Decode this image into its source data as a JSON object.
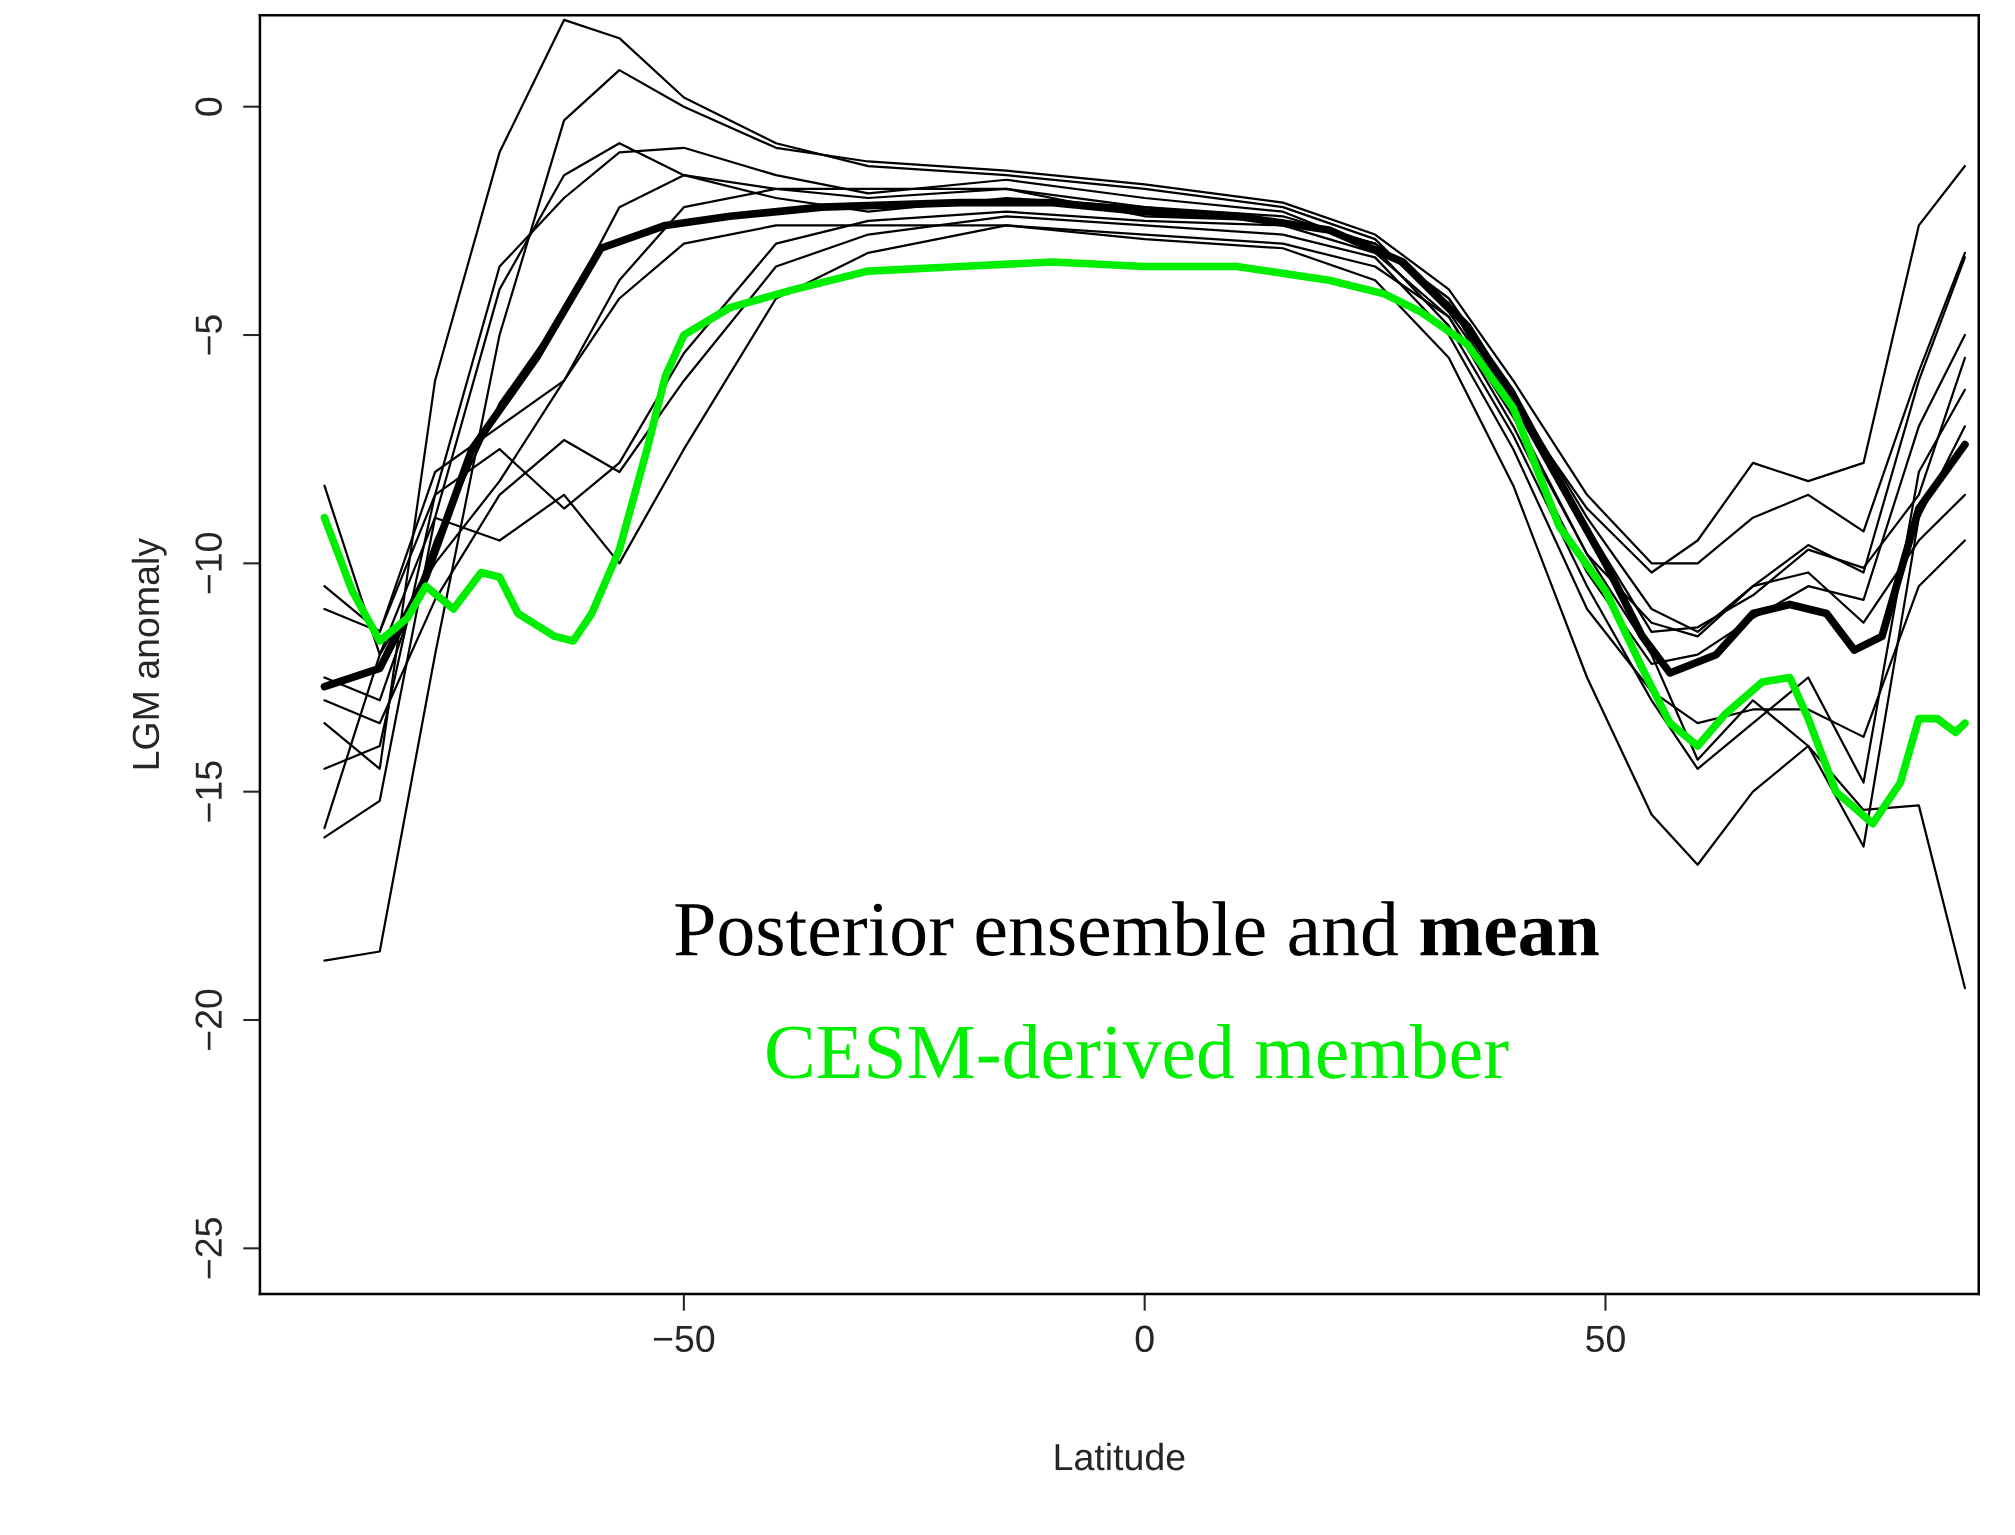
{
  "chart_data": {
    "type": "line",
    "xlabel": "Latitude",
    "ylabel": "LGM anomaly",
    "xlim": [
      -96,
      90.5
    ],
    "ylim": [
      -26,
      2
    ],
    "xticks": [
      {
        "value": -50,
        "label": "−50"
      },
      0,
      50
    ],
    "yticks": [
      0,
      {
        "value": -5,
        "label": "−5"
      },
      {
        "value": -10,
        "label": "−10"
      },
      {
        "value": -15,
        "label": "−15"
      },
      {
        "value": -20,
        "label": "−20"
      },
      {
        "value": -25,
        "label": "−25"
      }
    ],
    "grid": false,
    "legend": "bottom left",
    "marker": "none",
    "line_style": "solid",
    "x": [
      -89,
      -83,
      -77,
      -70,
      -63,
      -57,
      -50,
      -40,
      -30,
      -15,
      0,
      15,
      25,
      33,
      40,
      48,
      55,
      60,
      66,
      72,
      78,
      84,
      89
    ],
    "series": [
      {
        "color": "#000000",
        "values": [
          -13.5,
          -14.5,
          -6,
          -1,
          1.9,
          1.5,
          0.2,
          -0.8,
          -1.3,
          -1.5,
          -1.8,
          -2.2,
          -2.9,
          -4.5,
          -6.5,
          -8.8,
          -10.2,
          -9.5,
          -7.8,
          -8.2,
          -7.8,
          -2.6,
          -1.3
        ]
      },
      {
        "color": "#000000",
        "values": [
          -18.7,
          -18.5,
          -12,
          -5,
          -0.3,
          0.8,
          0,
          -0.9,
          -1.2,
          -1.4,
          -1.7,
          -2.1,
          -2.8,
          -4.0,
          -6.0,
          -8.5,
          -10.0,
          -10.0,
          -9.0,
          -8.5,
          -9.3,
          -5.8,
          -3.2
        ]
      },
      {
        "color": "#000000",
        "values": [
          -16.0,
          -15.2,
          -9,
          -4,
          -1.5,
          -0.8,
          -1.5,
          -2.0,
          -2.3,
          -2.0,
          -2.2,
          -2.5,
          -3.0,
          -4.2,
          -6.3,
          -9.0,
          -11.0,
          -11.5,
          -10.5,
          -9.6,
          -10.2,
          -6.0,
          -3.3
        ]
      },
      {
        "color": "#000000",
        "values": [
          -14.5,
          -14,
          -8.5,
          -7.5,
          -8.8,
          -7.8,
          -5.4,
          -3.0,
          -2.5,
          -2.3,
          -2.5,
          -2.6,
          -3.2,
          -4.6,
          -7.0,
          -10.2,
          -12.2,
          -12.0,
          -11.2,
          -10.5,
          -10.8,
          -7.0,
          -5.0
        ]
      },
      {
        "color": "#000000",
        "values": [
          -13.0,
          -13.5,
          -10.8,
          -8.5,
          -7.3,
          -8.0,
          -6.0,
          -3.5,
          -2.8,
          -2.4,
          -2.6,
          -2.8,
          -3.3,
          -5.0,
          -7.5,
          -11,
          -12.8,
          -13.5,
          -13.2,
          -13.2,
          -13.8,
          -10.5,
          -9.5
        ]
      },
      {
        "color": "#000000",
        "values": [
          -8.3,
          -12,
          -9,
          -9.5,
          -8.5,
          -10,
          -7.5,
          -4.2,
          -3.2,
          -2.6,
          -2.9,
          -3.1,
          -3.8,
          -5.5,
          -8.3,
          -12.5,
          -15.5,
          -16.6,
          -15.0,
          -14.0,
          -15.4,
          -15.3,
          -19.3
        ]
      },
      {
        "color": "#000000",
        "values": [
          -12.5,
          -13,
          -9.5,
          -6.5,
          -4.5,
          -2.2,
          -1.5,
          -1.8,
          -2.0,
          -1.8,
          -2.2,
          -2.4,
          -3.0,
          -4.3,
          -6.7,
          -9.8,
          -12.0,
          -14.3,
          -13.0,
          -14.0,
          -16.2,
          -9.0,
          -7.0
        ]
      },
      {
        "color": "#000000",
        "values": [
          -10.5,
          -11.5,
          -8.5,
          -3.5,
          -2.0,
          -1.0,
          -0.9,
          -1.5,
          -1.9,
          -1.6,
          -2.0,
          -2.3,
          -3.1,
          -4.8,
          -7.2,
          -10.5,
          -13.0,
          -14.5,
          -13.5,
          -12.5,
          -14.8,
          -8.0,
          -6.2
        ]
      },
      {
        "color": "#000000",
        "values": [
          -15.8,
          -12,
          -10,
          -8.2,
          -6,
          -4.2,
          -3.0,
          -2.6,
          -2.6,
          -2.6,
          -2.8,
          -3.0,
          -3.5,
          -4.6,
          -6.8,
          -9.8,
          -11.3,
          -11.6,
          -10.5,
          -10.2,
          -11.3,
          -9.5,
          -8.5
        ]
      },
      {
        "color": "#000000",
        "values": [
          -11,
          -11.5,
          -8,
          -7,
          -6,
          -3.8,
          -2.2,
          -1.8,
          -1.8,
          -1.8,
          -2.4,
          -2.5,
          -3.0,
          -4.2,
          -6.2,
          -9.2,
          -11.5,
          -11.4,
          -10.7,
          -9.7,
          -10.1,
          -8.5,
          -5.5
        ]
      },
      {
        "name": "Posterior ensemble and mean",
        "color": "#000000",
        "x": [
          -89,
          -83,
          -78,
          -73,
          -66,
          -59,
          -52,
          -45,
          -35,
          -20,
          -10,
          0,
          10,
          20,
          28,
          35,
          40,
          45,
          50,
          54,
          57,
          62,
          66,
          70,
          74,
          77,
          80,
          84,
          89
        ],
        "values": [
          -12.7,
          -12.3,
          -10.3,
          -7.5,
          -5.5,
          -3.1,
          -2.6,
          -2.4,
          -2.2,
          -2.1,
          -2.1,
          -2.3,
          -2.4,
          -2.7,
          -3.4,
          -4.8,
          -6.4,
          -8.2,
          -10.0,
          -11.6,
          -12.4,
          -12.0,
          -11.1,
          -10.9,
          -11.1,
          -11.9,
          -11.6,
          -8.8,
          -7.4
        ]
      },
      {
        "name": "CESM-derived member",
        "color": "#00ee00",
        "x": [
          -89,
          -86,
          -83,
          -80,
          -78,
          -75,
          -72,
          -70,
          -68,
          -64,
          -62,
          -60,
          -57,
          -54,
          -52,
          -50,
          -45,
          -38,
          -30,
          -20,
          -10,
          0,
          10,
          20,
          26,
          30,
          35,
          40,
          45,
          50,
          54,
          57,
          60,
          63,
          67,
          70,
          72,
          75,
          79,
          82,
          84,
          86,
          88,
          89
        ],
        "values": [
          -9.0,
          -10.6,
          -11.7,
          -11.2,
          -10.5,
          -11.0,
          -10.2,
          -10.3,
          -11.1,
          -11.6,
          -11.7,
          -11.1,
          -9.7,
          -7.5,
          -5.9,
          -5.0,
          -4.4,
          -4.0,
          -3.6,
          -3.5,
          -3.4,
          -3.5,
          -3.5,
          -3.8,
          -4.1,
          -4.5,
          -5.2,
          -6.6,
          -9.2,
          -10.6,
          -12.3,
          -13.5,
          -14.0,
          -13.3,
          -12.6,
          -12.5,
          -13.4,
          -15.0,
          -15.7,
          -14.8,
          -13.4,
          -13.4,
          -13.7,
          -13.5
        ]
      }
    ]
  }
}
